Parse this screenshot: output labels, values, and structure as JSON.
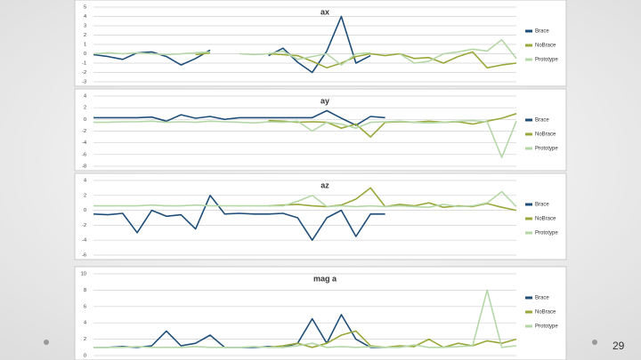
{
  "chart_data": [
    {
      "type": "line",
      "title": "ax",
      "x": [
        0,
        1,
        2,
        3,
        4,
        5,
        6,
        7,
        8,
        9,
        10,
        11,
        12,
        13,
        14,
        15,
        16,
        17,
        18,
        19,
        20,
        21,
        22,
        23,
        24,
        25,
        26,
        27,
        28,
        29
      ],
      "xlim": [
        0,
        29
      ],
      "ylim": [
        -3,
        5
      ],
      "yticks": [
        -3,
        -2,
        -1,
        0,
        1,
        2,
        3,
        4,
        5
      ],
      "grid": true,
      "series": [
        {
          "name": "Brace",
          "color": "#1f4e79",
          "values": [
            -0.1,
            -0.3,
            -0.6,
            0.1,
            0.2,
            -0.3,
            -1.2,
            -0.5,
            0.4,
            null,
            null,
            null,
            -0.2,
            0.6,
            -0.9,
            -2.0,
            0.3,
            4.0,
            -1.0,
            -0.2,
            null,
            null,
            null,
            null,
            null,
            null,
            null,
            null,
            null,
            null
          ]
        },
        {
          "name": "NoBrace",
          "color": "#9aa83a",
          "values": [
            null,
            null,
            null,
            null,
            null,
            null,
            null,
            -0.1,
            0.1,
            null,
            null,
            null,
            0.0,
            -0.1,
            -0.2,
            -0.8,
            -1.5,
            -1.0,
            -0.3,
            0.0,
            -0.2,
            0.0,
            -0.5,
            -0.4,
            -1.0,
            -0.3,
            0.2,
            -1.5,
            -1.2,
            -1.0
          ]
        },
        {
          "name": "Prototype",
          "color": "#b5d7a8",
          "values": [
            0.0,
            0.1,
            0.0,
            0.1,
            0.0,
            -0.1,
            0.0,
            0.1,
            0.2,
            null,
            0.0,
            -0.1,
            0.0,
            0.3,
            -0.6,
            -0.3,
            0.0,
            -1.2,
            0.0,
            0.1,
            null,
            0.0,
            -1.0,
            -0.8,
            0.0,
            0.2,
            0.5,
            0.3,
            1.5,
            -0.5
          ]
        }
      ]
    },
    {
      "type": "line",
      "title": "ay",
      "x": [
        0,
        1,
        2,
        3,
        4,
        5,
        6,
        7,
        8,
        9,
        10,
        11,
        12,
        13,
        14,
        15,
        16,
        17,
        18,
        19,
        20,
        21,
        22,
        23,
        24,
        25,
        26,
        27,
        28,
        29
      ],
      "xlim": [
        0,
        29
      ],
      "ylim": [
        -8,
        4
      ],
      "yticks": [
        -8,
        -6,
        -4,
        -2,
        0,
        2,
        4
      ],
      "grid": true,
      "series": [
        {
          "name": "Brace",
          "color": "#1f4e79",
          "values": [
            0.3,
            0.3,
            0.3,
            0.3,
            0.4,
            -0.3,
            0.8,
            0.2,
            0.5,
            0.0,
            0.3,
            0.3,
            0.3,
            0.3,
            0.3,
            0.3,
            1.5,
            0.2,
            -1.0,
            0.5,
            0.3,
            null,
            null,
            null,
            null,
            null,
            null,
            null,
            null,
            null
          ]
        },
        {
          "name": "NoBrace",
          "color": "#9aa83a",
          "values": [
            null,
            null,
            null,
            null,
            null,
            null,
            null,
            null,
            null,
            null,
            null,
            null,
            -0.2,
            -0.3,
            -0.5,
            -0.4,
            -0.5,
            -1.5,
            -0.8,
            -3.0,
            -0.5,
            -0.4,
            -0.5,
            -0.3,
            -0.5,
            -0.4,
            -0.8,
            -0.3,
            0.2,
            1.0
          ]
        },
        {
          "name": "Prototype",
          "color": "#b5d7a8",
          "values": [
            -0.5,
            -0.5,
            -0.4,
            -0.4,
            -0.3,
            -0.5,
            -0.4,
            -0.5,
            -0.3,
            -0.4,
            -0.5,
            -0.6,
            -0.4,
            -0.5,
            -0.3,
            -2.0,
            -0.5,
            -0.8,
            -1.5,
            -0.5,
            -0.4,
            -0.3,
            -0.5,
            -0.6,
            -0.5,
            -0.3,
            -0.2,
            -0.4,
            -6.5,
            -0.3
          ]
        }
      ]
    },
    {
      "type": "line",
      "title": "az",
      "x": [
        0,
        1,
        2,
        3,
        4,
        5,
        6,
        7,
        8,
        9,
        10,
        11,
        12,
        13,
        14,
        15,
        16,
        17,
        18,
        19,
        20,
        21,
        22,
        23,
        24,
        25,
        26,
        27,
        28,
        29
      ],
      "xlim": [
        0,
        29
      ],
      "ylim": [
        -6,
        4
      ],
      "yticks": [
        -6,
        -4,
        -2,
        0,
        2,
        4
      ],
      "grid": true,
      "series": [
        {
          "name": "Brace",
          "color": "#1f4e79",
          "values": [
            -0.5,
            -0.6,
            -0.4,
            -3.0,
            0.0,
            -0.8,
            -0.6,
            -2.5,
            2.0,
            -0.5,
            -0.4,
            -0.5,
            -0.5,
            -0.4,
            -1.0,
            -4.0,
            -1.0,
            0.0,
            -3.5,
            -0.5,
            -0.5,
            null,
            null,
            null,
            null,
            null,
            null,
            null,
            null,
            null
          ]
        },
        {
          "name": "NoBrace",
          "color": "#9aa83a",
          "values": [
            null,
            null,
            null,
            null,
            null,
            null,
            null,
            null,
            null,
            null,
            null,
            null,
            0.6,
            0.7,
            0.8,
            0.6,
            0.5,
            0.7,
            1.5,
            3.0,
            0.5,
            0.8,
            0.6,
            1.0,
            0.4,
            0.6,
            0.5,
            0.9,
            0.4,
            0.0
          ]
        },
        {
          "name": "Prototype",
          "color": "#b5d7a8",
          "values": [
            0.6,
            0.6,
            0.6,
            0.6,
            0.7,
            0.6,
            0.6,
            0.7,
            0.6,
            0.6,
            0.6,
            0.6,
            0.6,
            0.6,
            1.2,
            2.0,
            0.5,
            0.6,
            0.5,
            0.6,
            0.5,
            0.6,
            0.5,
            0.4,
            0.8,
            0.5,
            0.6,
            1.0,
            2.5,
            0.5
          ]
        }
      ]
    },
    {
      "type": "line",
      "title": "mag a",
      "x": [
        0,
        1,
        2,
        3,
        4,
        5,
        6,
        7,
        8,
        9,
        10,
        11,
        12,
        13,
        14,
        15,
        16,
        17,
        18,
        19,
        20,
        21,
        22,
        23,
        24,
        25,
        26,
        27,
        28,
        29
      ],
      "xlim": [
        0,
        29
      ],
      "ylim": [
        0,
        10
      ],
      "yticks": [
        0,
        2,
        4,
        6,
        8,
        10
      ],
      "grid": true,
      "series": [
        {
          "name": "Brace",
          "color": "#1f4e79",
          "values": [
            1.0,
            1.0,
            1.1,
            1.0,
            1.2,
            3.0,
            1.2,
            1.5,
            2.5,
            1.0,
            1.0,
            1.0,
            1.1,
            1.0,
            1.5,
            4.5,
            1.5,
            5.0,
            2.0,
            1.0,
            1.0,
            null,
            null,
            null,
            null,
            null,
            null,
            null,
            null,
            null
          ]
        },
        {
          "name": "NoBrace",
          "color": "#9aa83a",
          "values": [
            null,
            null,
            null,
            null,
            null,
            null,
            null,
            null,
            null,
            null,
            null,
            null,
            1.0,
            1.2,
            1.5,
            1.0,
            1.5,
            2.5,
            3.0,
            1.2,
            1.0,
            1.2,
            1.1,
            2.0,
            1.0,
            1.5,
            1.2,
            1.8,
            1.5,
            2.0
          ]
        },
        {
          "name": "Prototype",
          "color": "#b5d7a8",
          "values": [
            1.0,
            1.0,
            1.0,
            1.1,
            1.0,
            1.0,
            1.0,
            1.1,
            1.0,
            1.0,
            1.0,
            1.1,
            1.0,
            1.0,
            1.2,
            1.5,
            1.0,
            1.1,
            1.0,
            1.1,
            1.0,
            1.0,
            1.3,
            1.0,
            1.0,
            1.1,
            1.2,
            8.0,
            1.0,
            1.2
          ]
        }
      ]
    }
  ],
  "page_number": 29
}
